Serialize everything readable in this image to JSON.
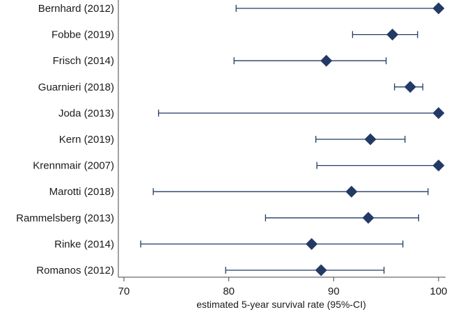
{
  "chart_data": {
    "type": "scatter",
    "subtype": "forest-plot",
    "title": "",
    "xlabel": "estimated 5-year survival rate (95%-CI)",
    "ylabel": "",
    "xlim": [
      70,
      100
    ],
    "xticks": [
      70,
      80,
      90,
      100
    ],
    "grid": false,
    "colors": {
      "marker": "#233a66",
      "line": "#233a66",
      "axis": "#444444"
    },
    "studies": [
      {
        "label": "Bernhard (2012)",
        "estimate": 100.0,
        "lower": 80.7,
        "upper": 100.0
      },
      {
        "label": "Fobbe (2019)",
        "estimate": 95.6,
        "lower": 91.8,
        "upper": 98.0
      },
      {
        "label": "Frisch (2014)",
        "estimate": 89.3,
        "lower": 80.5,
        "upper": 95.0
      },
      {
        "label": "Guarnieri (2018)",
        "estimate": 97.3,
        "lower": 95.8,
        "upper": 98.5
      },
      {
        "label": "Joda (2013)",
        "estimate": 100.0,
        "lower": 73.3,
        "upper": 100.0
      },
      {
        "label": "Kern (2019)",
        "estimate": 93.5,
        "lower": 88.3,
        "upper": 96.8
      },
      {
        "label": "Krennmair (2007)",
        "estimate": 100.0,
        "lower": 88.4,
        "upper": 100.0
      },
      {
        "label": "Marotti (2018)",
        "estimate": 91.7,
        "lower": 72.8,
        "upper": 99.0
      },
      {
        "label": "Rammelsberg (2013)",
        "estimate": 93.3,
        "lower": 83.5,
        "upper": 98.1
      },
      {
        "label": "Rinke (2014)",
        "estimate": 87.9,
        "lower": 71.6,
        "upper": 96.6
      },
      {
        "label": "Romanos (2012)",
        "estimate": 88.8,
        "lower": 79.7,
        "upper": 94.8
      }
    ]
  }
}
